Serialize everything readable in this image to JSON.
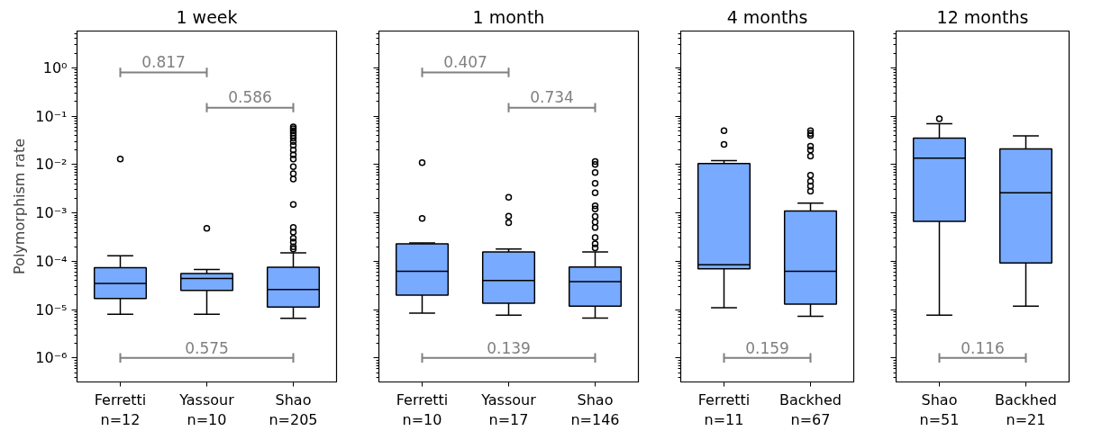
{
  "chart_data": [
    {
      "type": "box",
      "title": "1 week",
      "ylabel": "Polymorphism rate",
      "categories": [
        "Ferretti\nn=12",
        "Yassour\nn=10",
        "Shao\nn=205"
      ],
      "color": "#78aaff",
      "log": "y",
      "grid": false,
      "ylim": [
        3.2e-07,
        5.75
      ],
      "yticks": [
        {
          "value": 1e-06,
          "label": "10⁻⁶"
        },
        {
          "value": 1e-05,
          "label": "10⁻⁵"
        },
        {
          "value": 0.0001,
          "label": "10⁻⁴"
        },
        {
          "value": 0.001,
          "label": "10⁻³"
        },
        {
          "value": 0.01,
          "label": "10⁻²"
        },
        {
          "value": 0.1,
          "label": "10⁻¹"
        },
        {
          "value": 1,
          "label": "10⁰"
        }
      ],
      "boxes": [
        {
          "low": 8e-06,
          "q1": 1.7e-05,
          "median": 3.5e-05,
          "q3": 7.4e-05,
          "high": 0.00013,
          "outliers": [
            0.013
          ]
        },
        {
          "low": 8e-06,
          "q1": 2.5e-05,
          "median": 4.4e-05,
          "q3": 5.6e-05,
          "high": 6.8e-05,
          "outliers": [
            0.00048
          ]
        },
        {
          "low": 6.6e-06,
          "q1": 1.13e-05,
          "median": 2.6e-05,
          "q3": 7.5e-05,
          "high": 0.00015,
          "outliers": [
            0.06,
            0.055,
            0.05,
            0.045,
            0.04,
            0.035,
            0.03,
            0.025,
            0.02,
            0.016,
            0.013,
            0.009,
            0.0065,
            0.005,
            0.0015,
            0.0005,
            0.0004,
            0.0003,
            0.00025,
            0.0002,
            0.00018
          ]
        }
      ],
      "annotations": [
        "0.817",
        "0.586",
        "0.575"
      ]
    },
    {
      "type": "box",
      "title": "1 month",
      "categories": [
        "Ferretti\nn=10",
        "Yassour\nn=17",
        "Shao\nn=146"
      ],
      "color": "#78aaff",
      "log": "y",
      "grid": false,
      "tick_labels": "x",
      "ylim": [
        3.2e-07,
        5.75
      ],
      "yticks": [
        {
          "value": 1e-06,
          "label": null
        },
        {
          "value": 1e-05,
          "label": null
        },
        {
          "value": 0.0001,
          "label": null
        },
        {
          "value": 0.001,
          "label": null
        },
        {
          "value": 0.01,
          "label": null
        },
        {
          "value": 0.1,
          "label": null
        },
        {
          "value": 1,
          "label": null
        }
      ],
      "boxes": [
        {
          "low": 8.5e-06,
          "q1": 2e-05,
          "median": 6.2e-05,
          "q3": 0.00023,
          "high": 0.00024,
          "outliers": [
            0.011,
            0.00077
          ]
        },
        {
          "low": 7.7e-06,
          "q1": 1.36e-05,
          "median": 4e-05,
          "q3": 0.000156,
          "high": 0.00018,
          "outliers": [
            0.0021,
            0.00086,
            0.00063
          ]
        },
        {
          "low": 6.7e-06,
          "q1": 1.18e-05,
          "median": 3.8e-05,
          "q3": 7.6e-05,
          "high": 0.000156,
          "outliers": [
            0.0115,
            0.0101,
            0.0068,
            0.0041,
            0.0026,
            0.0014,
            0.0012,
            0.00085,
            0.00065,
            0.0005,
            0.00031,
            0.00023,
            0.00019
          ]
        }
      ],
      "annotations": [
        "0.407",
        "0.734",
        "0.139"
      ]
    },
    {
      "type": "box",
      "title": "4 months",
      "categories": [
        "Ferretti\nn=11",
        "Backhed\nn=67"
      ],
      "color": "#78aaff",
      "log": "y",
      "grid": false,
      "tick_labels": "x",
      "ylim": [
        3.2e-07,
        5.75
      ],
      "yticks": [
        {
          "value": 1e-06,
          "label": null
        },
        {
          "value": 1e-05,
          "label": null
        },
        {
          "value": 0.0001,
          "label": null
        },
        {
          "value": 0.001,
          "label": null
        },
        {
          "value": 0.01,
          "label": null
        },
        {
          "value": 0.1,
          "label": null
        },
        {
          "value": 1,
          "label": null
        }
      ],
      "boxes": [
        {
          "low": 1.1e-05,
          "q1": 7e-05,
          "median": 8.5e-05,
          "q3": 0.0105,
          "high": 0.012,
          "outliers": [
            0.05,
            0.026
          ]
        },
        {
          "low": 7.3e-06,
          "q1": 1.3e-05,
          "median": 6.2e-05,
          "q3": 0.0011,
          "high": 0.0016,
          "outliers": [
            0.05,
            0.044,
            0.04,
            0.024,
            0.02,
            0.015,
            0.006,
            0.0045,
            0.0036,
            0.0028
          ]
        }
      ],
      "annotations": [
        "0.159"
      ]
    },
    {
      "type": "box",
      "title": "12 months",
      "categories": [
        "Shao\nn=51",
        "Backhed\nn=21"
      ],
      "color": "#78aaff",
      "log": "y",
      "grid": false,
      "tick_labels": "x",
      "ylim": [
        3.2e-07,
        5.75
      ],
      "yticks": [
        {
          "value": 1e-06,
          "label": null
        },
        {
          "value": 1e-05,
          "label": null
        },
        {
          "value": 0.0001,
          "label": null
        },
        {
          "value": 0.001,
          "label": null
        },
        {
          "value": 0.01,
          "label": null
        },
        {
          "value": 0.1,
          "label": null
        },
        {
          "value": 1,
          "label": null
        }
      ],
      "boxes": [
        {
          "low": 7.7e-06,
          "q1": 0.00067,
          "median": 0.0135,
          "q3": 0.035,
          "high": 0.07,
          "outliers": [
            0.088
          ]
        },
        {
          "low": 1.18e-05,
          "q1": 9.2e-05,
          "median": 0.0026,
          "q3": 0.021,
          "high": 0.039
        }
      ],
      "annotations": [
        "0.116"
      ]
    }
  ]
}
